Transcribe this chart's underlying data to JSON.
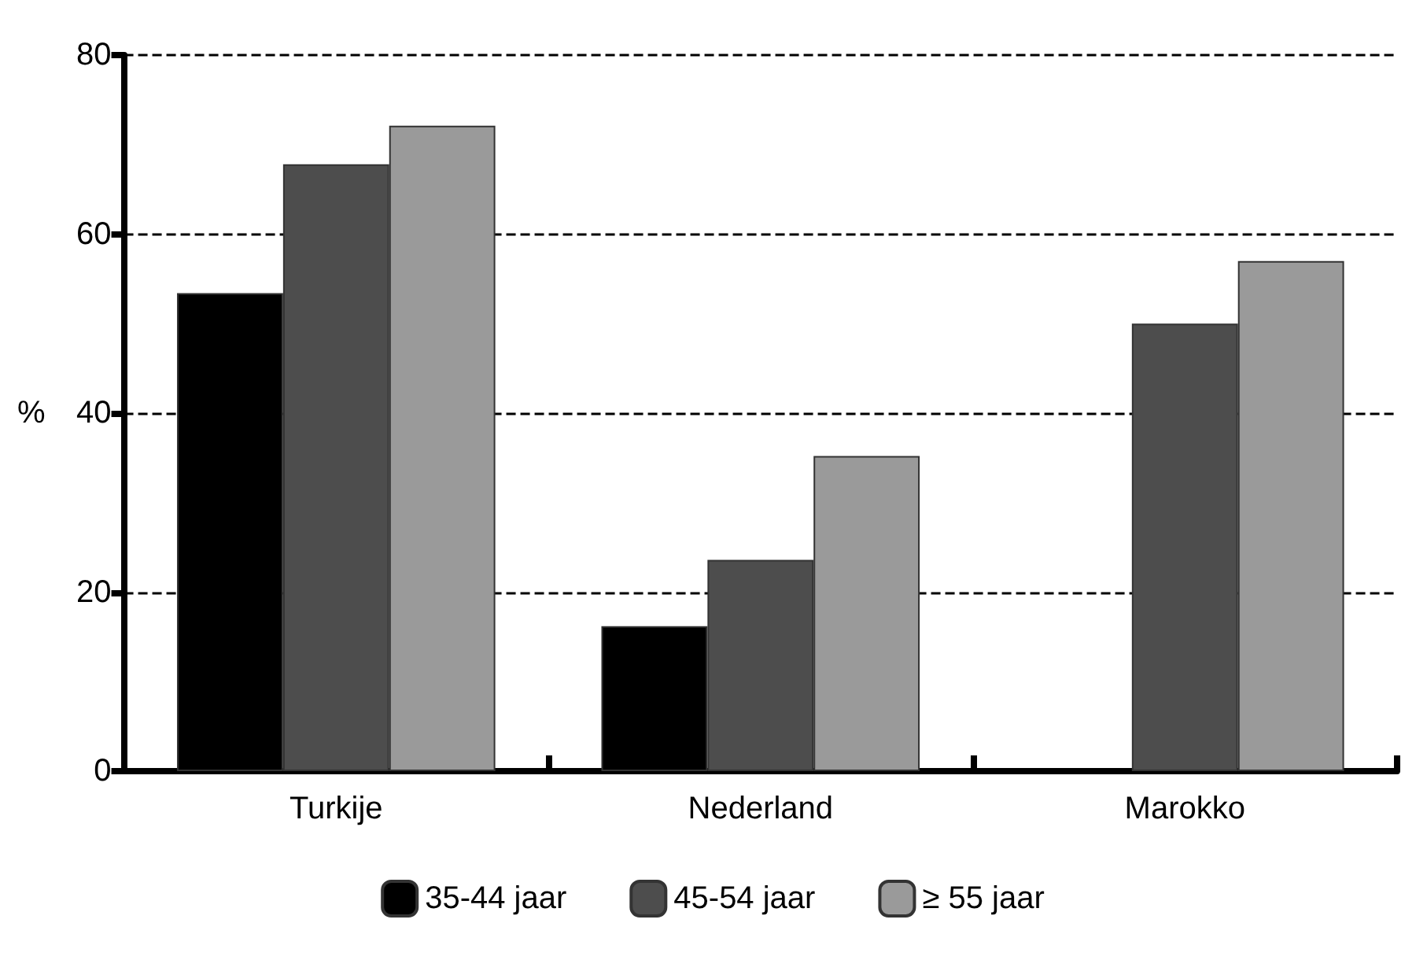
{
  "chart_data": {
    "type": "bar",
    "ylabel": "%",
    "categories": [
      "Turkije",
      "Nederland",
      "Marokko"
    ],
    "series": [
      {
        "name": "35-44 jaar",
        "color": "#000000",
        "values": [
          53.4,
          16.2,
          null
        ]
      },
      {
        "name": "45-54 jaar",
        "color": "#4d4d4d",
        "values": [
          67.8,
          23.6,
          50
        ]
      },
      {
        "name": "≥ 55 jaar",
        "color": "#9a9a9a",
        "values": [
          72.1,
          35.2,
          57
        ]
      }
    ],
    "ylim": [
      0,
      80
    ],
    "yticks": [
      0,
      20,
      40,
      60,
      80
    ],
    "grid": "y",
    "legend": "bottom"
  }
}
